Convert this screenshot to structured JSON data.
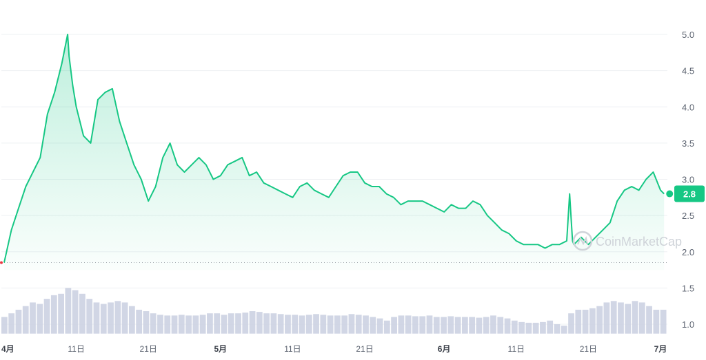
{
  "watermark": "CoinMarketCap",
  "colors": {
    "line": "#16c784",
    "fill_top": "#16c784",
    "grid": "#eef0f3",
    "volume": "#c9cfe0",
    "baseline": "#9aa0a6",
    "start_dot": "#ea3943"
  },
  "chart_data": {
    "type": "area",
    "title": "",
    "xlabel": "",
    "ylabel": "",
    "ylim": [
      0.8,
      5.5
    ],
    "y_ticks": [
      "1.0",
      "1.5",
      "2.0",
      "2.5",
      "3.0",
      "3.5",
      "4.0",
      "4.5",
      "5.0"
    ],
    "x_ticks": [
      {
        "label": "4月",
        "day": 0,
        "month": true
      },
      {
        "label": "11日",
        "day": 10,
        "month": false
      },
      {
        "label": "21日",
        "day": 20,
        "month": false
      },
      {
        "label": "5月",
        "day": 30,
        "month": true
      },
      {
        "label": "11日",
        "day": 40,
        "month": false
      },
      {
        "label": "21日",
        "day": 50,
        "month": false
      },
      {
        "label": "6月",
        "day": 61,
        "month": true
      },
      {
        "label": "11日",
        "day": 71,
        "month": false
      },
      {
        "label": "21日",
        "day": 81,
        "month": false
      },
      {
        "label": "7月",
        "day": 91,
        "month": true
      }
    ],
    "baseline_value": 1.85,
    "current_value": "2.8",
    "series": [
      {
        "x": [
          0,
          1,
          2,
          3,
          4,
          5,
          6,
          7,
          8,
          8.8,
          9,
          9.5,
          10,
          11,
          12,
          13,
          14,
          15,
          16,
          17,
          18,
          19,
          20,
          21,
          22,
          23,
          24,
          25,
          26,
          27,
          28,
          29,
          30,
          31,
          32,
          33,
          34,
          35,
          36,
          37,
          38,
          39,
          40,
          41,
          42,
          43,
          44,
          45,
          46,
          47,
          48,
          49,
          50,
          51,
          52,
          53,
          54,
          55,
          56,
          57,
          58,
          59,
          60,
          61,
          62,
          63,
          64,
          65,
          66,
          67,
          68,
          69,
          70,
          71,
          72,
          73,
          74,
          75,
          76,
          77,
          78,
          78.4,
          78.8,
          79,
          80,
          81,
          82,
          83,
          84,
          85,
          86,
          87,
          88,
          89,
          90,
          91,
          91.5
        ],
        "values": [
          1.85,
          2.3,
          2.6,
          2.9,
          3.1,
          3.3,
          3.9,
          4.2,
          4.6,
          5.0,
          4.7,
          4.3,
          4.0,
          3.6,
          3.5,
          4.1,
          4.2,
          4.25,
          3.8,
          3.5,
          3.2,
          3.0,
          2.7,
          2.9,
          3.3,
          3.5,
          3.2,
          3.1,
          3.2,
          3.3,
          3.2,
          3.0,
          3.05,
          3.2,
          3.25,
          3.3,
          3.05,
          3.1,
          2.95,
          2.9,
          2.85,
          2.8,
          2.75,
          2.9,
          2.95,
          2.85,
          2.8,
          2.75,
          2.9,
          3.05,
          3.1,
          3.1,
          2.95,
          2.9,
          2.9,
          2.8,
          2.75,
          2.65,
          2.7,
          2.7,
          2.7,
          2.65,
          2.6,
          2.55,
          2.65,
          2.6,
          2.6,
          2.7,
          2.65,
          2.5,
          2.4,
          2.3,
          2.25,
          2.15,
          2.1,
          2.1,
          2.1,
          2.05,
          2.1,
          2.1,
          2.15,
          2.8,
          2.15,
          2.1,
          2.2,
          2.1,
          2.2,
          2.3,
          2.4,
          2.7,
          2.85,
          2.9,
          2.85,
          3.0,
          3.1,
          2.85,
          2.8
        ]
      }
    ],
    "volume": [
      1.1,
      1.15,
      1.2,
      1.25,
      1.3,
      1.28,
      1.35,
      1.4,
      1.42,
      1.5,
      1.47,
      1.42,
      1.35,
      1.3,
      1.28,
      1.3,
      1.32,
      1.3,
      1.25,
      1.2,
      1.18,
      1.15,
      1.13,
      1.12,
      1.12,
      1.13,
      1.12,
      1.12,
      1.13,
      1.15,
      1.15,
      1.13,
      1.15,
      1.15,
      1.16,
      1.18,
      1.17,
      1.15,
      1.15,
      1.14,
      1.13,
      1.13,
      1.12,
      1.13,
      1.14,
      1.13,
      1.12,
      1.12,
      1.12,
      1.14,
      1.13,
      1.12,
      1.1,
      1.08,
      1.05,
      1.1,
      1.12,
      1.12,
      1.11,
      1.11,
      1.12,
      1.1,
      1.1,
      1.11,
      1.1,
      1.1,
      1.1,
      1.09,
      1.1,
      1.12,
      1.1,
      1.08,
      1.05,
      1.03,
      1.02,
      1.02,
      1.03,
      1.05,
      1.0,
      0.98,
      1.15,
      1.2,
      1.2,
      1.22,
      1.25,
      1.3,
      1.32,
      1.3,
      1.28,
      1.32,
      1.3,
      1.25,
      1.2,
      1.2
    ]
  }
}
